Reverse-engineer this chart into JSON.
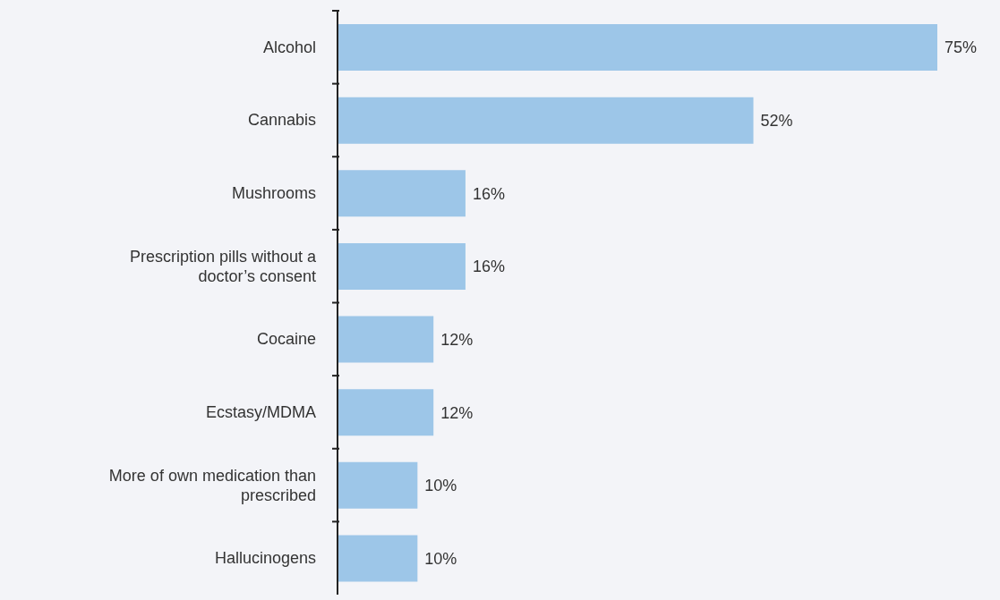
{
  "chart_data": {
    "type": "bar",
    "orientation": "horizontal",
    "categories": [
      "Alcohol",
      "Cannabis",
      "Mushrooms",
      "Prescription pills without a doctor’s consent",
      "Cocaine",
      "Ecstasy/MDMA",
      "More of own medication than prescribed",
      "Hallucinogens"
    ],
    "values": [
      75,
      52,
      16,
      16,
      12,
      12,
      10,
      10
    ],
    "value_labels": [
      "75%",
      "52%",
      "16%",
      "16%",
      "12%",
      "12%",
      "10%",
      "10%"
    ],
    "color": "#9dc6e8",
    "grid": false,
    "legend": false
  }
}
